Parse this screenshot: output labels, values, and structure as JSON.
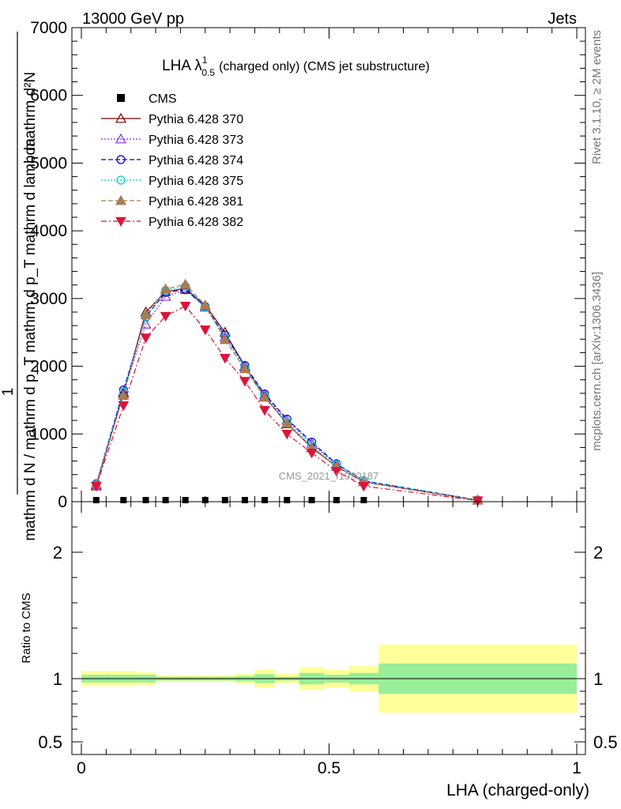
{
  "header": {
    "left": "13000 GeV pp",
    "right": "Jets"
  },
  "side_text": {
    "rivet": "Rivet 3.1.10, ≥ 2M events",
    "mcplots": "mcplots.cern.ch [arXiv:1306.3436]"
  },
  "watermark": "CMS_2021_I1920187",
  "chart_data": [
    {
      "type": "line",
      "title": "LHA λ¹₀.₅ (charged only) (CMS jet substructure)",
      "title_main": "LHA λ",
      "title_sup": "1",
      "title_sub": "0.5",
      "title_rest": "(charged only) (CMS jet substructure)",
      "ylabel_numerator": "mathrm d²N",
      "ylabel_prefix": "1",
      "ylabel_denominator": "mathrm d N / mathrm d p_T mathrm d p_T mathrm d lambda",
      "xlim": [
        0,
        1
      ],
      "ylim": [
        0,
        7000
      ],
      "yticks": [
        {
          "v": 0,
          "label": "0"
        },
        {
          "v": 1000,
          "label": "1000"
        },
        {
          "v": 2000,
          "label": "2000"
        },
        {
          "v": 3000,
          "label": "3000"
        },
        {
          "v": 4000,
          "label": "4000"
        },
        {
          "v": 5000,
          "label": "5000"
        },
        {
          "v": 6000,
          "label": "6000"
        },
        {
          "v": 7000,
          "label": "7000"
        }
      ],
      "legend_position": "top-left",
      "series": [
        {
          "name": "CMS",
          "color": "#000000",
          "marker": "square",
          "dash": "none",
          "x": [
            0.03,
            0.085,
            0.13,
            0.17,
            0.21,
            0.25,
            0.29,
            0.33,
            0.37,
            0.415,
            0.465,
            0.515,
            0.57
          ],
          "values": [
            0,
            0,
            0,
            0,
            0,
            0,
            0,
            0,
            0,
            0,
            0,
            0,
            0
          ]
        },
        {
          "name": "Pythia 6.428 370",
          "color": "#800000",
          "marker": "triangle-open",
          "dash": "none",
          "x": [
            0.03,
            0.085,
            0.13,
            0.17,
            0.21,
            0.25,
            0.29,
            0.33,
            0.37,
            0.415,
            0.465,
            0.515,
            0.57,
            0.8
          ],
          "values": [
            230,
            1600,
            2800,
            3100,
            3150,
            2900,
            2500,
            2000,
            1550,
            1150,
            800,
            520,
            290,
            20
          ]
        },
        {
          "name": "Pythia 6.428 373",
          "color": "#8a2be2",
          "marker": "triangle-open",
          "dash": "dotted",
          "x": [
            0.03,
            0.085,
            0.13,
            0.17,
            0.21,
            0.25,
            0.29,
            0.33,
            0.37,
            0.415,
            0.465,
            0.515,
            0.57,
            0.8
          ],
          "values": [
            250,
            1620,
            2620,
            3030,
            3130,
            2870,
            2430,
            1990,
            1580,
            1200,
            860,
            550,
            300,
            22
          ]
        },
        {
          "name": "Pythia 6.428 374",
          "color": "#0000cd",
          "marker": "circle-open",
          "dash": "dashed",
          "x": [
            0.03,
            0.085,
            0.13,
            0.17,
            0.21,
            0.25,
            0.29,
            0.33,
            0.37,
            0.415,
            0.465,
            0.515,
            0.57,
            0.8
          ],
          "values": [
            260,
            1650,
            2730,
            3090,
            3130,
            2880,
            2460,
            2010,
            1590,
            1220,
            880,
            560,
            310,
            24
          ]
        },
        {
          "name": "Pythia 6.428 375",
          "color": "#00ced1",
          "marker": "circle-open",
          "dash": "dotted",
          "x": [
            0.03,
            0.085,
            0.13,
            0.17,
            0.21,
            0.25,
            0.29,
            0.33,
            0.37,
            0.415,
            0.465,
            0.515,
            0.57,
            0.8
          ],
          "values": [
            270,
            1620,
            2730,
            3120,
            3180,
            2870,
            2430,
            1980,
            1570,
            1170,
            830,
            550,
            310,
            24
          ]
        },
        {
          "name": "Pythia 6.428 381",
          "color": "#a97c50",
          "marker": "triangle-filled",
          "dash": "dashed",
          "x": [
            0.03,
            0.085,
            0.13,
            0.17,
            0.21,
            0.25,
            0.29,
            0.33,
            0.37,
            0.415,
            0.465,
            0.515,
            0.57,
            0.8
          ],
          "values": [
            260,
            1570,
            2760,
            3140,
            3210,
            2900,
            2390,
            1960,
            1540,
            1160,
            790,
            520,
            290,
            22
          ]
        },
        {
          "name": "Pythia 6.428 382",
          "color": "#dc143c",
          "marker": "triangle-down-filled",
          "dash": "dashdot",
          "x": [
            0.03,
            0.085,
            0.13,
            0.17,
            0.21,
            0.25,
            0.29,
            0.33,
            0.37,
            0.415,
            0.465,
            0.515,
            0.57,
            0.8
          ],
          "values": [
            230,
            1420,
            2420,
            2740,
            2890,
            2540,
            2120,
            1780,
            1350,
            1000,
            720,
            450,
            230,
            16
          ]
        }
      ]
    },
    {
      "type": "area",
      "ylabel": "Ratio to CMS",
      "xlabel": "LHA (charged-only)",
      "xlim": [
        0,
        1
      ],
      "ylim": [
        0.4,
        2.4
      ],
      "reference_line": 1,
      "xticks": [
        {
          "v": 0,
          "label": "0"
        },
        {
          "v": 0.5,
          "label": "0.5"
        },
        {
          "v": 1,
          "label": "1"
        }
      ],
      "yticks": [
        {
          "v": 0.5,
          "label": "0.5"
        },
        {
          "v": 1,
          "label": "1"
        },
        {
          "v": 2,
          "label": "2"
        }
      ],
      "bands": [
        {
          "x0": 0.0,
          "x1": 0.06,
          "inner": [
            0.97,
            1.03
          ],
          "outer": [
            0.94,
            1.06
          ]
        },
        {
          "x0": 0.06,
          "x1": 0.11,
          "inner": [
            0.97,
            1.03
          ],
          "outer": [
            0.94,
            1.06
          ]
        },
        {
          "x0": 0.11,
          "x1": 0.15,
          "inner": [
            0.97,
            1.03
          ],
          "outer": [
            0.95,
            1.05
          ]
        },
        {
          "x0": 0.15,
          "x1": 0.19,
          "inner": [
            0.985,
            1.015
          ],
          "outer": [
            0.975,
            1.025
          ]
        },
        {
          "x0": 0.19,
          "x1": 0.23,
          "inner": [
            0.985,
            1.015
          ],
          "outer": [
            0.975,
            1.025
          ]
        },
        {
          "x0": 0.23,
          "x1": 0.27,
          "inner": [
            0.985,
            1.015
          ],
          "outer": [
            0.975,
            1.025
          ]
        },
        {
          "x0": 0.27,
          "x1": 0.31,
          "inner": [
            0.985,
            1.015
          ],
          "outer": [
            0.975,
            1.025
          ]
        },
        {
          "x0": 0.31,
          "x1": 0.35,
          "inner": [
            0.98,
            1.02
          ],
          "outer": [
            0.96,
            1.04
          ]
        },
        {
          "x0": 0.35,
          "x1": 0.39,
          "inner": [
            0.965,
            1.035
          ],
          "outer": [
            0.93,
            1.07
          ]
        },
        {
          "x0": 0.39,
          "x1": 0.44,
          "inner": [
            0.985,
            1.015
          ],
          "outer": [
            0.96,
            1.04
          ]
        },
        {
          "x0": 0.44,
          "x1": 0.49,
          "inner": [
            0.955,
            1.045
          ],
          "outer": [
            0.91,
            1.09
          ]
        },
        {
          "x0": 0.49,
          "x1": 0.54,
          "inner": [
            0.97,
            1.03
          ],
          "outer": [
            0.93,
            1.07
          ]
        },
        {
          "x0": 0.54,
          "x1": 0.6,
          "inner": [
            0.955,
            1.045
          ],
          "outer": [
            0.9,
            1.1
          ]
        },
        {
          "x0": 0.6,
          "x1": 1.0,
          "inner": [
            0.88,
            1.12
          ],
          "outer": [
            0.73,
            1.27
          ]
        }
      ]
    }
  ]
}
